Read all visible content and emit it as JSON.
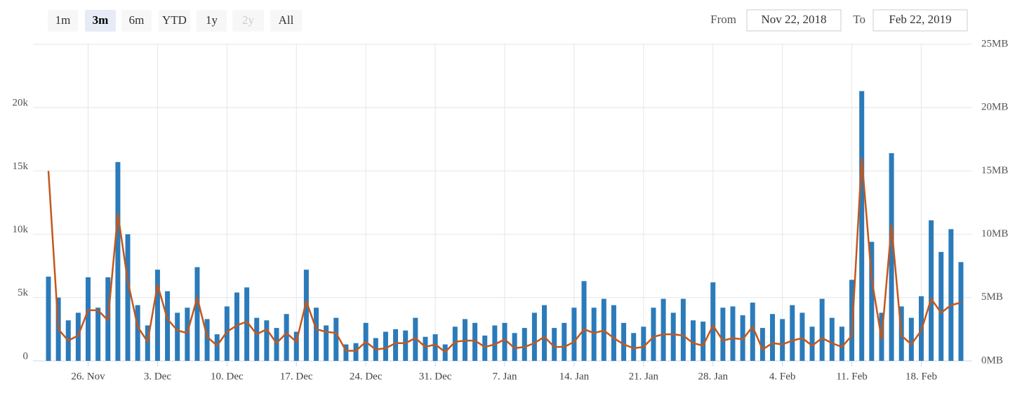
{
  "range_selector": {
    "buttons": [
      {
        "label": "1m",
        "state": "normal"
      },
      {
        "label": "3m",
        "state": "selected"
      },
      {
        "label": "6m",
        "state": "normal"
      },
      {
        "label": "YTD",
        "state": "normal"
      },
      {
        "label": "1y",
        "state": "normal"
      },
      {
        "label": "2y",
        "state": "disabled"
      },
      {
        "label": "All",
        "state": "normal"
      }
    ],
    "from_label": "From",
    "from": "Nov 22, 2018",
    "to_label": "To",
    "to": "Feb 22, 2019"
  },
  "chart_data": {
    "type": "bar_line",
    "categories": [
      null,
      null,
      null,
      null,
      "26. Nov",
      null,
      null,
      null,
      null,
      null,
      null,
      "3. Dec",
      null,
      null,
      null,
      null,
      null,
      null,
      "10. Dec",
      null,
      null,
      null,
      null,
      null,
      null,
      "17. Dec",
      null,
      null,
      null,
      null,
      null,
      null,
      "24. Dec",
      null,
      null,
      null,
      null,
      null,
      null,
      "31. Dec",
      null,
      null,
      null,
      null,
      null,
      null,
      "7. Jan",
      null,
      null,
      null,
      null,
      null,
      null,
      "14. Jan",
      null,
      null,
      null,
      null,
      null,
      null,
      "21. Jan",
      null,
      null,
      null,
      null,
      null,
      null,
      "28. Jan",
      null,
      null,
      null,
      null,
      null,
      null,
      "4. Feb",
      null,
      null,
      null,
      null,
      null,
      null,
      "11. Feb",
      null,
      null,
      null,
      null,
      null,
      null,
      "18. Feb",
      null,
      null,
      null,
      null
    ],
    "series": [
      {
        "type": "bar",
        "color": "#2b7bba",
        "axis": "y",
        "values": [
          6650,
          5000,
          3200,
          3800,
          6600,
          4200,
          6600,
          15700,
          10000,
          4400,
          2800,
          7200,
          5500,
          3800,
          4200,
          7400,
          3300,
          2100,
          4300,
          5400,
          5800,
          3400,
          3200,
          2600,
          3700,
          2300,
          7200,
          4200,
          2800,
          3400,
          1300,
          1400,
          3000,
          1800,
          2300,
          2500,
          2400,
          3400,
          1900,
          2100,
          1300,
          2700,
          3300,
          3000,
          2000,
          2800,
          3000,
          2200,
          2600,
          3800,
          4400,
          2600,
          3000,
          4200,
          6300,
          4200,
          4900,
          4400,
          3000,
          2200,
          2700,
          4200,
          4900,
          3800,
          4900,
          3200,
          3100,
          6200,
          4200,
          4300,
          3600,
          4600,
          2600,
          3700,
          3300,
          4400,
          3800,
          2700,
          4900,
          3400,
          2700,
          6400,
          21300,
          9400,
          3800,
          16400,
          4300,
          3400,
          5100,
          11100,
          8600,
          10400,
          7800
        ]
      },
      {
        "type": "line",
        "color": "#c4571a",
        "axis": "y2",
        "values": [
          15,
          2.5,
          1.6,
          2.0,
          4.0,
          4.0,
          3.2,
          11.6,
          6.3,
          2.7,
          1.5,
          6.0,
          3.3,
          2.4,
          2.2,
          5.0,
          1.9,
          1.2,
          2.3,
          2.8,
          3.1,
          2.1,
          2.5,
          1.4,
          2.2,
          1.5,
          4.7,
          2.5,
          2.3,
          2.2,
          0.8,
          0.8,
          1.5,
          0.9,
          1.0,
          1.4,
          1.4,
          1.8,
          1.1,
          1.3,
          0.7,
          1.5,
          1.6,
          1.6,
          1.1,
          1.3,
          1.7,
          1.0,
          1.1,
          1.4,
          1.9,
          1.1,
          1.1,
          1.5,
          2.5,
          2.2,
          2.4,
          1.8,
          1.3,
          1.0,
          1.1,
          1.9,
          2.1,
          2.1,
          2.0,
          1.4,
          1.2,
          2.8,
          1.6,
          1.8,
          1.7,
          2.7,
          0.9,
          1.4,
          1.3,
          1.6,
          1.8,
          1.2,
          1.8,
          1.4,
          1.1,
          2.0,
          16.0,
          6.5,
          1.7,
          10.7,
          2.0,
          1.3,
          2.4,
          4.9,
          3.8,
          4.4,
          4.6
        ]
      }
    ],
    "ylim": [
      0,
      25000
    ],
    "yticks": [
      0,
      {
        "value": 5000,
        "label": "5k"
      },
      {
        "value": 10000,
        "label": "10k"
      },
      {
        "value": 15000,
        "label": "15k"
      },
      {
        "value": 20000,
        "label": "20k"
      }
    ],
    "y2lim": [
      0,
      25
    ],
    "y2ticks": [
      {
        "value": 0,
        "label": "0MB"
      },
      {
        "value": 5,
        "label": "5MB"
      },
      {
        "value": 10,
        "label": "10MB"
      },
      {
        "value": 15,
        "label": "15MB"
      },
      {
        "value": 20,
        "label": "20MB"
      },
      {
        "value": 25,
        "label": "25MB"
      }
    ],
    "grid": true
  }
}
